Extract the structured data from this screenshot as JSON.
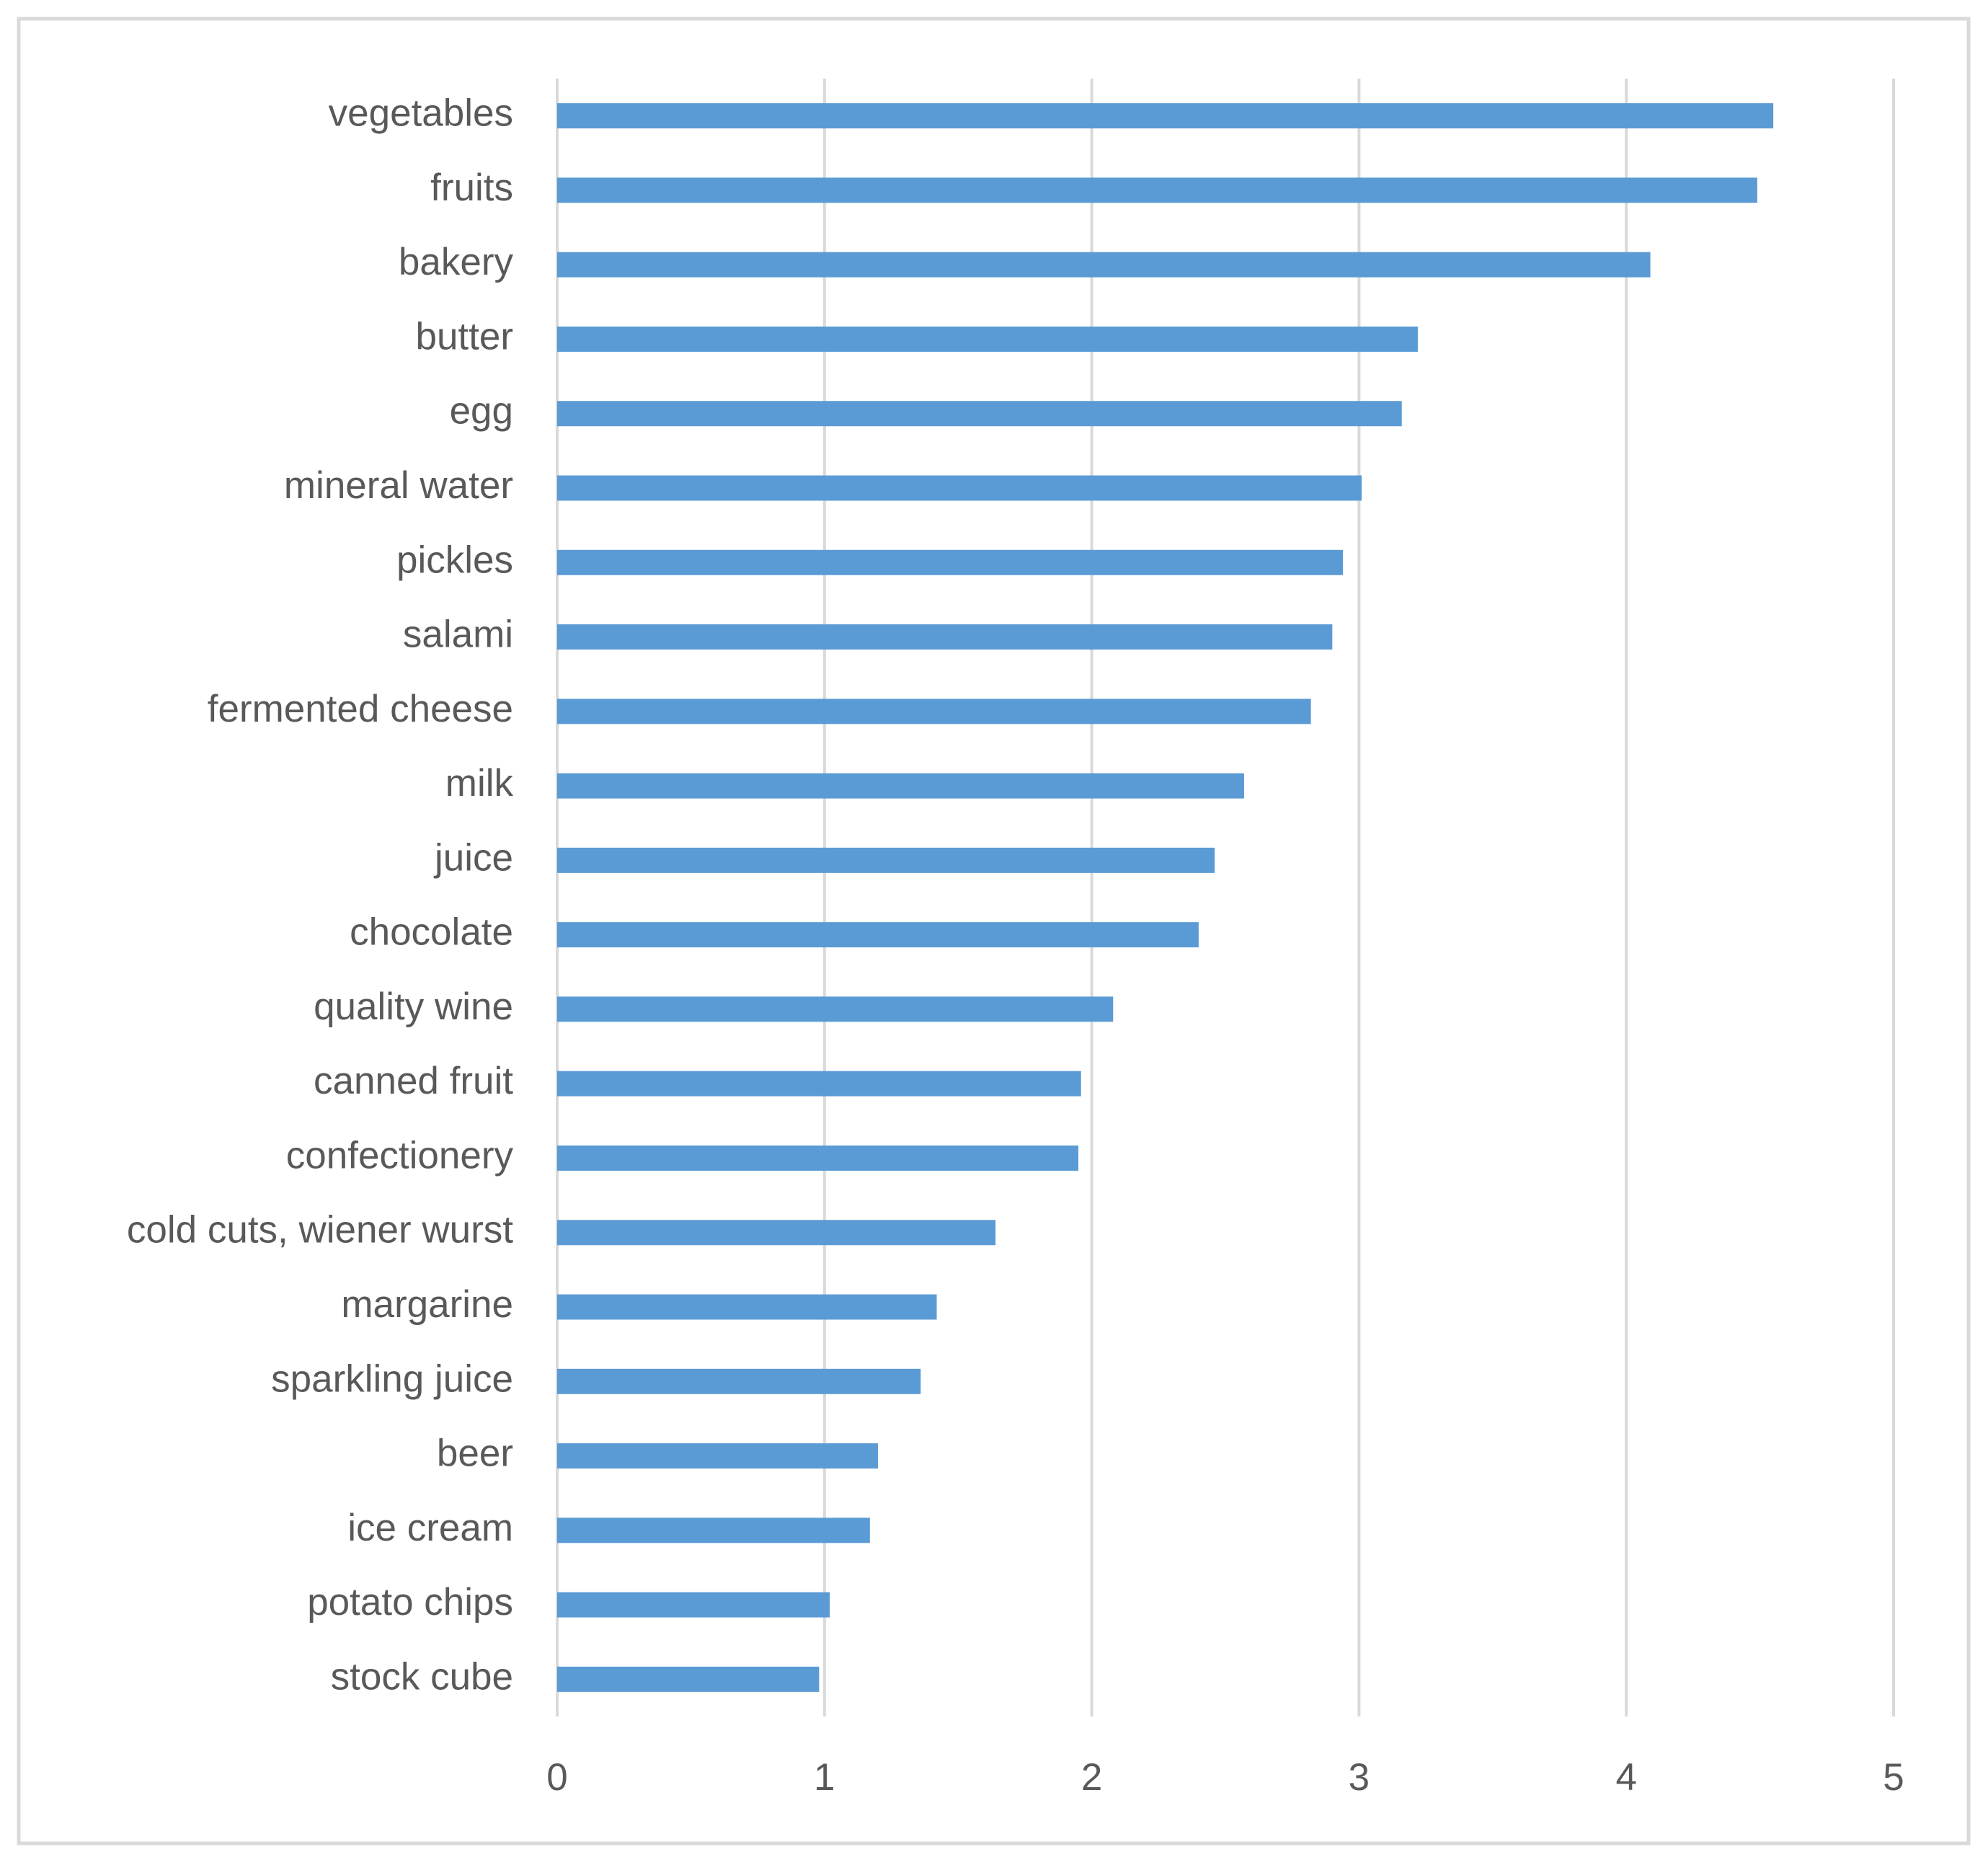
{
  "chart_data": {
    "type": "bar",
    "orientation": "horizontal",
    "categories": [
      "vegetables",
      "fruits",
      "bakery",
      "butter",
      "egg",
      "mineral water",
      "pickles",
      "salami",
      "fermented cheese",
      "milk",
      "juice",
      "chocolate",
      "quality wine",
      "canned fruit",
      "confectionery",
      "cold cuts, wiener wurst",
      "margarine",
      "sparkling juice",
      "beer",
      "ice cream",
      "potato chips",
      "stock cube"
    ],
    "values": [
      4.55,
      4.49,
      4.09,
      3.22,
      3.16,
      3.01,
      2.94,
      2.9,
      2.82,
      2.57,
      2.46,
      2.4,
      2.08,
      1.96,
      1.95,
      1.64,
      1.42,
      1.36,
      1.2,
      1.17,
      1.02,
      0.98
    ],
    "color": "#5b9bd5",
    "xlim": [
      0,
      5
    ],
    "xticks": [
      0,
      1,
      2,
      3,
      4,
      5
    ],
    "grid": true
  }
}
